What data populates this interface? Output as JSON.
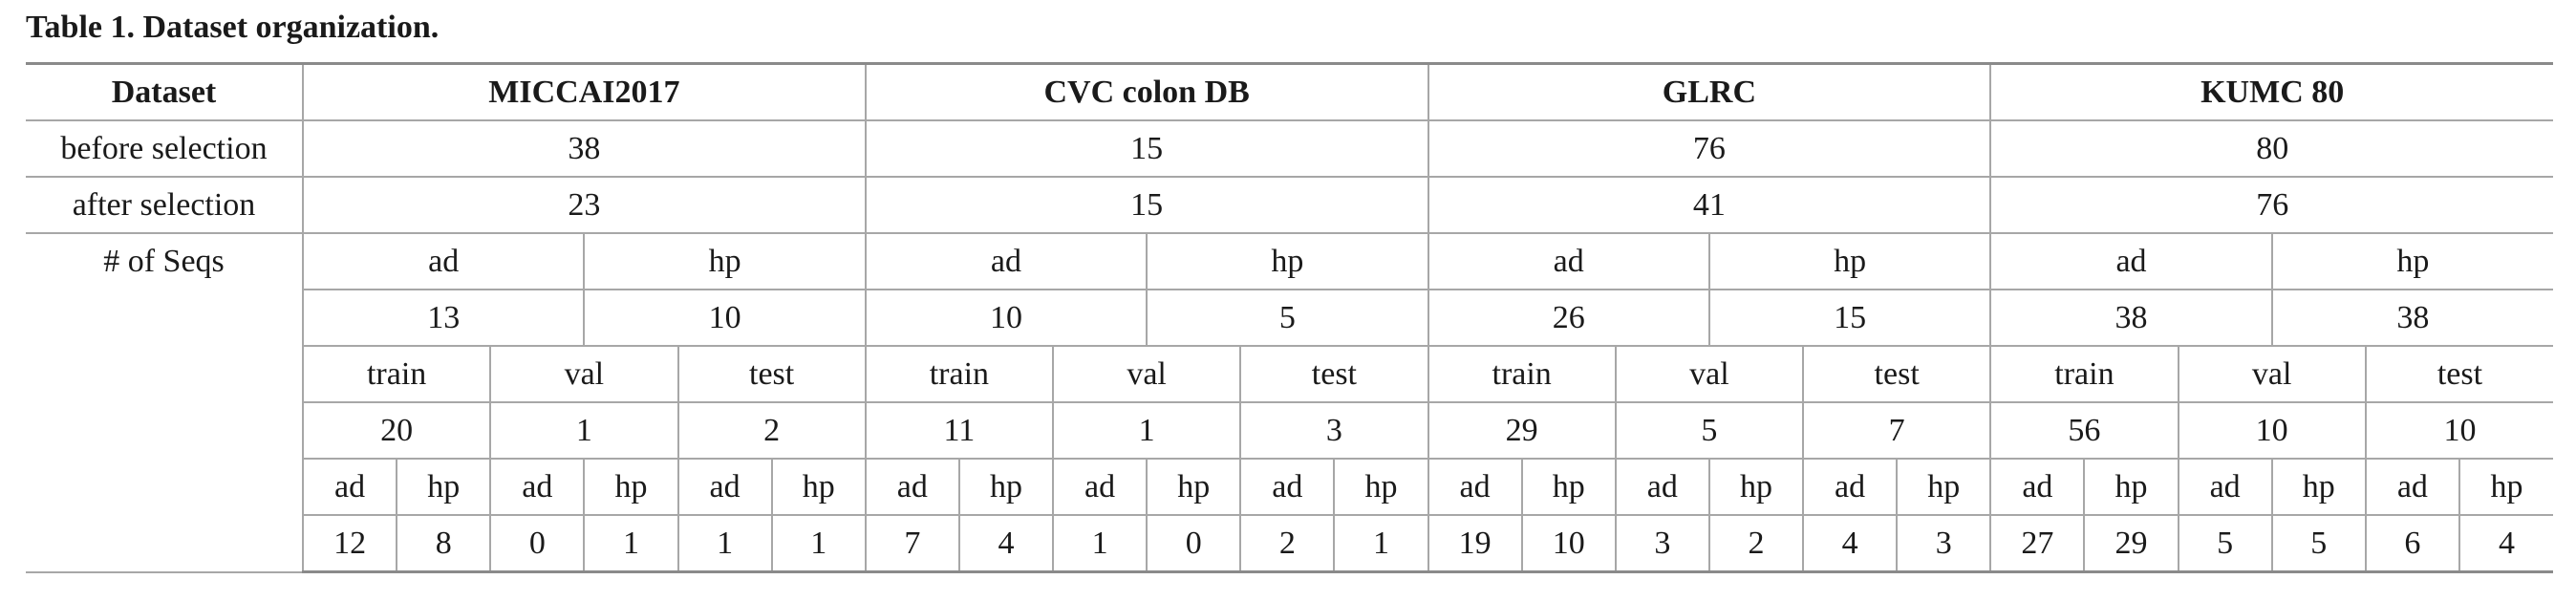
{
  "caption": "Table 1. Dataset organization.",
  "header": {
    "label": "Dataset",
    "datasets": [
      "MICCAI2017",
      "CVC colon DB",
      "GLRC",
      "KUMC 80"
    ]
  },
  "before_selection": {
    "label": "before selection",
    "values": [
      "38",
      "15",
      "76",
      "80"
    ]
  },
  "after_selection": {
    "label": "after selection",
    "values": [
      "23",
      "15",
      "41",
      "76"
    ]
  },
  "seqs": {
    "label": "# of Seqs",
    "class_labels": [
      "ad",
      "hp",
      "ad",
      "hp",
      "ad",
      "hp",
      "ad",
      "hp"
    ],
    "class_counts": [
      "13",
      "10",
      "10",
      "5",
      "26",
      "15",
      "38",
      "38"
    ],
    "split_labels": [
      "train",
      "val",
      "test",
      "train",
      "val",
      "test",
      "train",
      "val",
      "test",
      "train",
      "val",
      "test"
    ],
    "split_counts": [
      "20",
      "1",
      "2",
      "11",
      "1",
      "3",
      "29",
      "5",
      "7",
      "56",
      "10",
      "10"
    ],
    "fine_labels": [
      "ad",
      "hp",
      "ad",
      "hp",
      "ad",
      "hp",
      "ad",
      "hp",
      "ad",
      "hp",
      "ad",
      "hp",
      "ad",
      "hp",
      "ad",
      "hp",
      "ad",
      "hp",
      "ad",
      "hp",
      "ad",
      "hp",
      "ad",
      "hp"
    ],
    "fine_counts": [
      "12",
      "8",
      "0",
      "1",
      "1",
      "1",
      "7",
      "4",
      "1",
      "0",
      "2",
      "1",
      "19",
      "10",
      "3",
      "2",
      "4",
      "3",
      "27",
      "29",
      "5",
      "5",
      "6",
      "4"
    ]
  }
}
